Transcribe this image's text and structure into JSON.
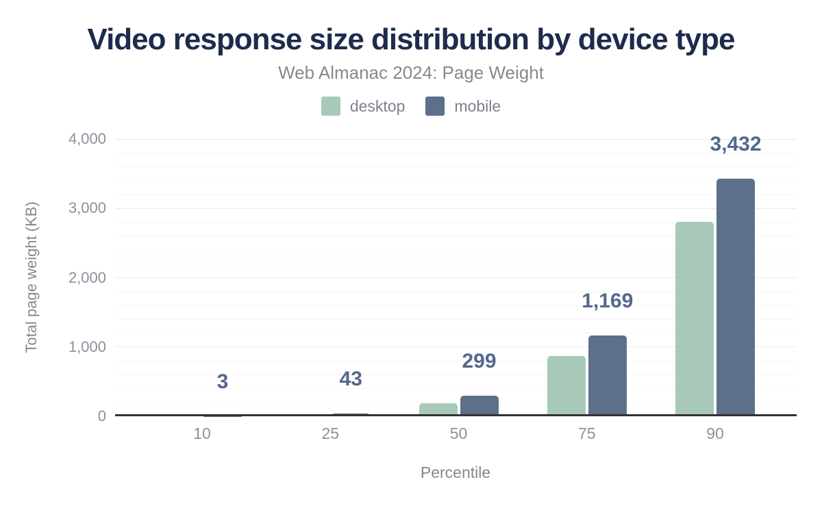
{
  "title": "Video response size distribution by device type",
  "subtitle": "Web Almanac 2024: Page Weight",
  "colors": {
    "title": "#1e2b4d",
    "subtitle": "#85898f",
    "axis_text": "#8b919b",
    "data_label": "#54678c",
    "axis_line": "#333333",
    "desktop": "#a8c9b8",
    "mobile": "#5d6f8b",
    "background": "#ffffff"
  },
  "chart_data": {
    "type": "bar",
    "title": "Video response size distribution by device type",
    "subtitle": "Web Almanac 2024: Page Weight",
    "categories": [
      "10",
      "25",
      "50",
      "75",
      "90"
    ],
    "series": [
      {
        "name": "desktop",
        "color": "#a8c9b8",
        "values": [
          0,
          27,
          185,
          865,
          2805
        ],
        "values_estimated_from_bar_heights": true
      },
      {
        "name": "mobile",
        "color": "#5d6f8b",
        "values": [
          3,
          43,
          299,
          1169,
          3432
        ]
      }
    ],
    "data_labels": {
      "labeled_series": "mobile",
      "values": [
        "3",
        "43",
        "299",
        "1,169",
        "3,432"
      ]
    },
    "xlabel": "Percentile",
    "ylabel": "Total page weight (KB)",
    "ylim": [
      0,
      4000
    ],
    "yticks": [
      0,
      1000,
      2000,
      3000,
      4000
    ],
    "ytick_labels": [
      "0",
      "1,000",
      "2,000",
      "3,000",
      "4,000"
    ],
    "minor_grid_step": 200,
    "grid": true,
    "legend_position": "top"
  }
}
